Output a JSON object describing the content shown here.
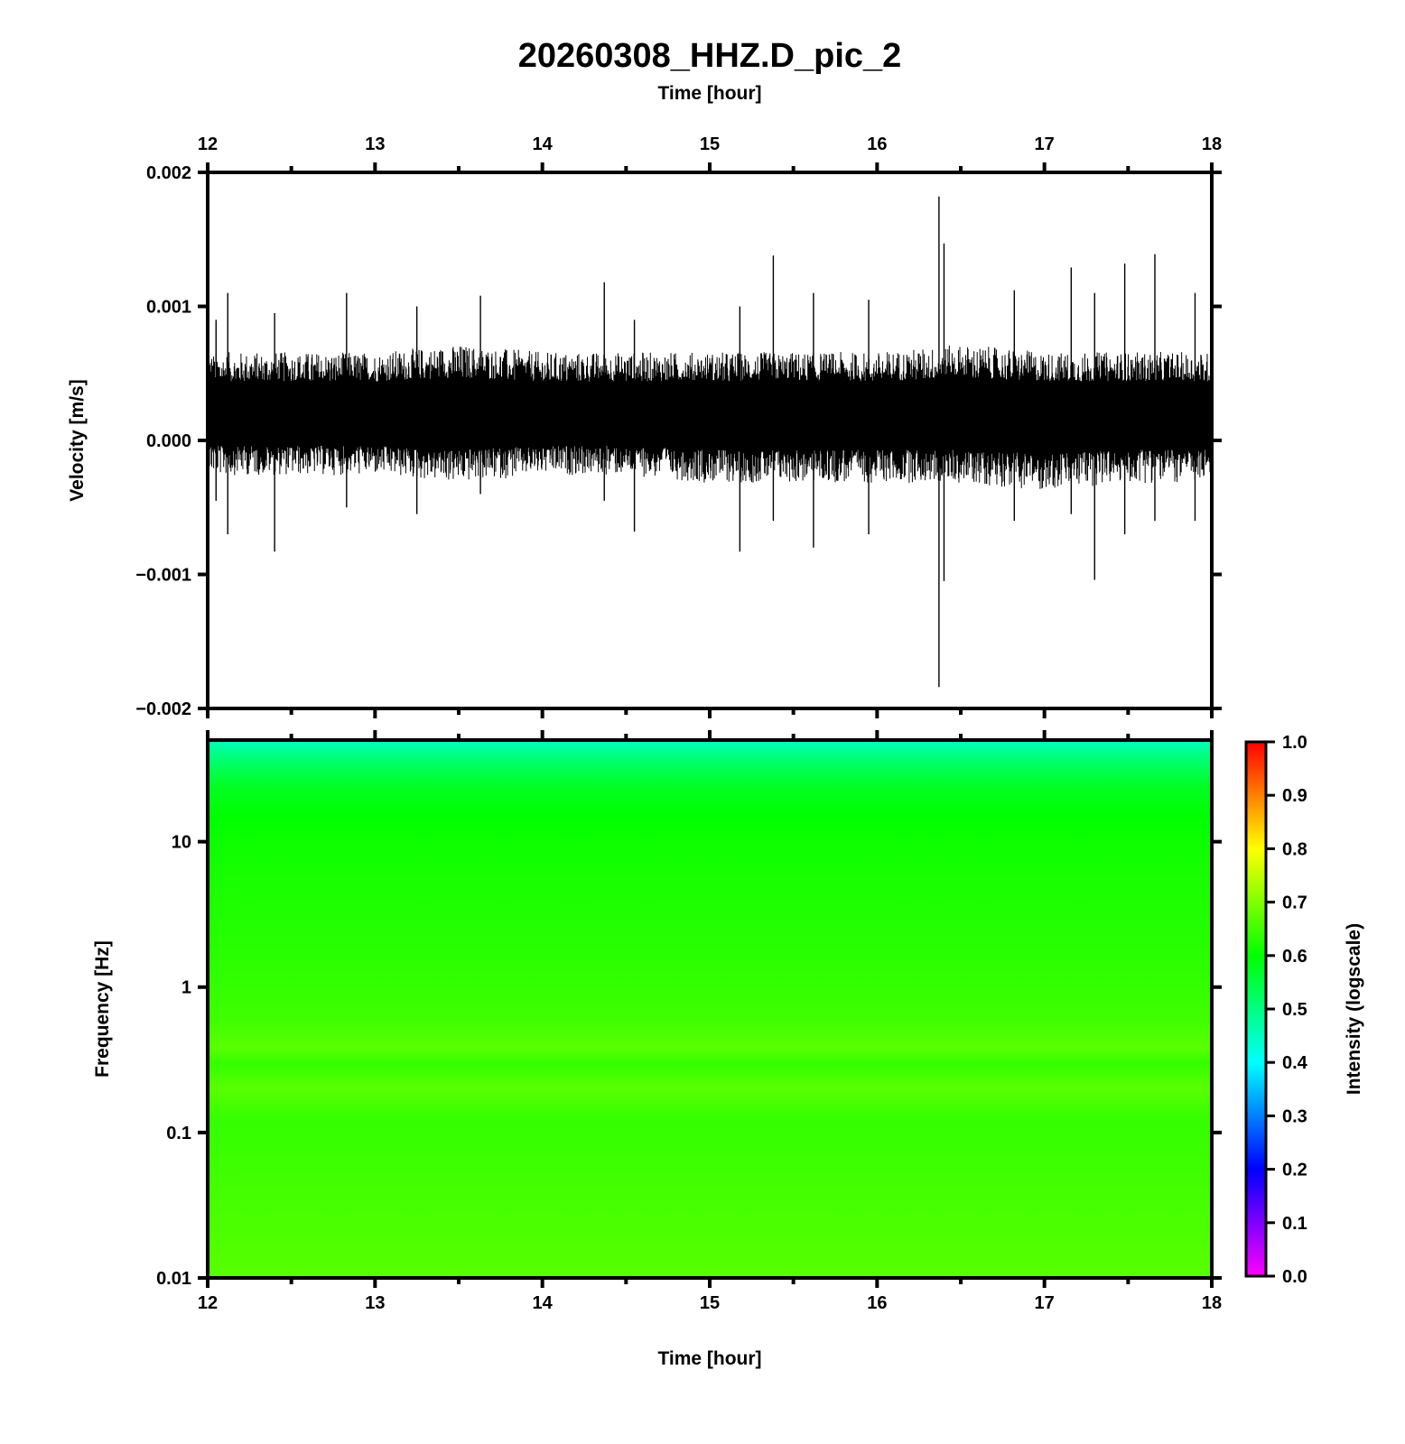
{
  "chart_data": [
    {
      "type": "line",
      "title": "20260308_HHZ.D_pic_2",
      "top_xlabel": "Time [hour]",
      "ylabel": "Velocity [m/s]",
      "xlim": [
        12,
        18
      ],
      "ylim": [
        -0.002,
        0.002
      ],
      "x_ticks": [
        "12",
        "13",
        "14",
        "15",
        "16",
        "17",
        "18"
      ],
      "y_ticks": [
        {
          "v": 0.002,
          "label": "0.002"
        },
        {
          "v": 0.001,
          "label": "0.001"
        },
        {
          "v": 0.0,
          "label": "0.000"
        },
        {
          "v": -0.001,
          "label": "−0.001"
        },
        {
          "v": -0.002,
          "label": "−0.002"
        }
      ],
      "series": [
        {
          "baseline": 0.0002,
          "line_color": "#000000",
          "envelope": {
            "x": [
              12.0,
              12.5,
              13.0,
              13.5,
              14.0,
              14.5,
              15.0,
              15.5,
              16.0,
              16.5,
              17.0,
              17.5,
              18.0
            ],
            "upper": [
              0.0006,
              0.0006,
              0.0006,
              0.00065,
              0.0006,
              0.0006,
              0.0006,
              0.0006,
              0.0006,
              0.00065,
              0.0006,
              0.0006,
              0.0006
            ],
            "lower": [
              -0.0002,
              -0.0002,
              -0.0002,
              -0.00025,
              -0.0002,
              -0.0002,
              -0.00025,
              -0.00025,
              -0.00025,
              -0.00025,
              -0.0003,
              -0.00025,
              -0.00025
            ]
          },
          "spikes": [
            {
              "x": 12.05,
              "min": -0.00045,
              "max": 0.0009
            },
            {
              "x": 12.12,
              "min": -0.0007,
              "max": 0.0011
            },
            {
              "x": 12.4,
              "min": -0.00083,
              "max": 0.00095
            },
            {
              "x": 12.83,
              "min": -0.0005,
              "max": 0.0011
            },
            {
              "x": 13.25,
              "min": -0.00055,
              "max": 0.001
            },
            {
              "x": 13.63,
              "min": -0.0004,
              "max": 0.00108
            },
            {
              "x": 14.37,
              "min": -0.00045,
              "max": 0.00118
            },
            {
              "x": 14.55,
              "min": -0.00068,
              "max": 0.0009
            },
            {
              "x": 15.18,
              "min": -0.00083,
              "max": 0.001
            },
            {
              "x": 15.38,
              "min": -0.0006,
              "max": 0.00138
            },
            {
              "x": 15.62,
              "min": -0.0008,
              "max": 0.0011
            },
            {
              "x": 15.95,
              "min": -0.0007,
              "max": 0.00105
            },
            {
              "x": 16.37,
              "min": -0.00184,
              "max": 0.00182
            },
            {
              "x": 16.4,
              "min": -0.00105,
              "max": 0.00147
            },
            {
              "x": 16.82,
              "min": -0.0006,
              "max": 0.00112
            },
            {
              "x": 17.16,
              "min": -0.00055,
              "max": 0.00129
            },
            {
              "x": 17.3,
              "min": -0.00104,
              "max": 0.0011
            },
            {
              "x": 17.48,
              "min": -0.0007,
              "max": 0.00132
            },
            {
              "x": 17.66,
              "min": -0.0006,
              "max": 0.00139
            },
            {
              "x": 17.9,
              "min": -0.0006,
              "max": 0.0011
            }
          ]
        }
      ]
    },
    {
      "type": "heatmap",
      "xlabel": "Time [hour]",
      "ylabel": "Frequency [Hz]",
      "xlim": [
        12,
        18
      ],
      "ylim": [
        0.01,
        50
      ],
      "y_scale": "log",
      "x_ticks": [
        "12",
        "13",
        "14",
        "15",
        "16",
        "17",
        "18"
      ],
      "y_ticks": [
        {
          "v": 10,
          "label": "10"
        },
        {
          "v": 1,
          "label": "1"
        },
        {
          "v": 0.1,
          "label": "0.1"
        },
        {
          "v": 0.01,
          "label": "0.01"
        }
      ],
      "intensity_profile": {
        "frequency": [
          50,
          40,
          25,
          15,
          10,
          5,
          2,
          1,
          0.6,
          0.38,
          0.3,
          0.2,
          0.12,
          0.05,
          0.02,
          0.01
        ],
        "intensity": [
          0.45,
          0.5,
          0.57,
          0.6,
          0.61,
          0.62,
          0.63,
          0.64,
          0.65,
          0.67,
          0.64,
          0.67,
          0.64,
          0.65,
          0.66,
          0.67
        ]
      },
      "colorbar": {
        "label": "Intensity (logscale)",
        "range": [
          0,
          1
        ],
        "ticks": [
          "0.0",
          "0.1",
          "0.2",
          "0.3",
          "0.4",
          "0.5",
          "0.6",
          "0.7",
          "0.8",
          "0.9",
          "1.0"
        ],
        "colors": [
          "#ff00ff",
          "#0000ff",
          "#00ffff",
          "#00ff00",
          "#ffff00",
          "#ff0000"
        ]
      }
    }
  ]
}
